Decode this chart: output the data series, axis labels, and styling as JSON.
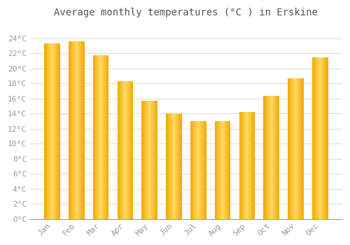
{
  "title": "Average monthly temperatures (°C ) in Erskine",
  "months": [
    "Jan",
    "Feb",
    "Mar",
    "Apr",
    "May",
    "Jun",
    "Jul",
    "Aug",
    "Sep",
    "Oct",
    "Nov",
    "Dec"
  ],
  "values": [
    23.3,
    23.6,
    21.7,
    18.3,
    15.7,
    14.0,
    13.0,
    13.0,
    14.2,
    16.3,
    18.7,
    21.5
  ],
  "bar_color_left": "#F5A800",
  "bar_color_center": "#FFD966",
  "bar_color_right": "#F5A800",
  "background_color": "#FFFFFF",
  "grid_color": "#DDDDDD",
  "text_color": "#999999",
  "title_color": "#555555",
  "ylim": [
    0,
    26
  ],
  "yticks": [
    0,
    2,
    4,
    6,
    8,
    10,
    12,
    14,
    16,
    18,
    20,
    22,
    24
  ],
  "title_fontsize": 10,
  "tick_fontsize": 8,
  "font_family": "monospace"
}
